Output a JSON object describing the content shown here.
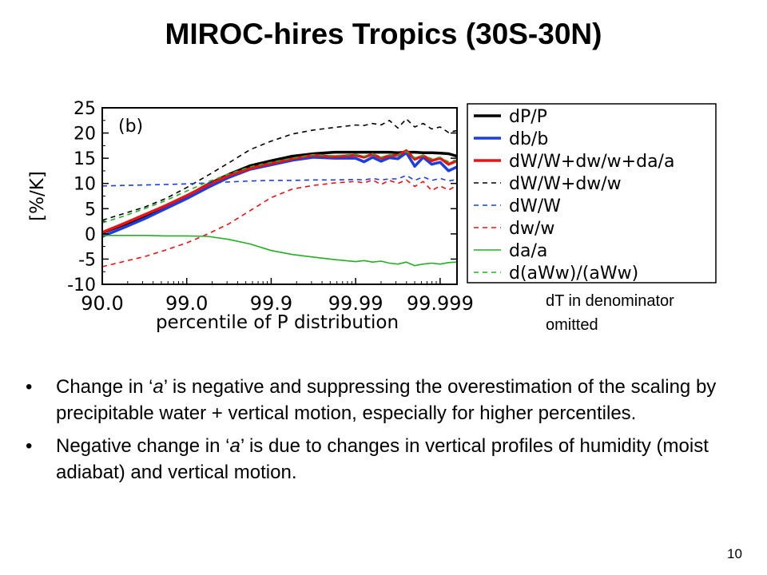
{
  "slide": {
    "title": "MIROC-hires Tropics (30S-30N)",
    "note_line1": "dT in denominator",
    "note_line2": "omitted",
    "page_number": "10",
    "bullets": [
      {
        "pre": "Change in ‘",
        "em": "a",
        "post": "’ is negative and suppressing the overestimation of the scaling by precipitable water + vertical motion, especially for higher percentiles."
      },
      {
        "pre": "Negative change in ‘",
        "em": "a",
        "post": "’ is due to changes in vertical profiles of humidity (moist adiabat) and vertical motion."
      }
    ]
  },
  "chart_data": {
    "type": "line",
    "panel_label": "(b)",
    "xlabel": "percentile of P distribution",
    "ylabel": "[%/K]",
    "x_tick_labels": [
      "90.0",
      "99.0",
      "99.9",
      "99.99",
      "99.999"
    ],
    "x_tick_positions": [
      0,
      1,
      2,
      3,
      4
    ],
    "xlim": [
      0,
      4.2
    ],
    "ylim": [
      -10,
      25
    ],
    "y_ticks": [
      -10,
      -5,
      0,
      5,
      10,
      15,
      20,
      25
    ],
    "legend_position": "right, outside plot",
    "x": [
      0,
      0.25,
      0.5,
      0.75,
      1,
      1.25,
      1.5,
      1.75,
      2,
      2.25,
      2.5,
      2.75,
      3,
      3.1,
      3.2,
      3.3,
      3.4,
      3.5,
      3.6,
      3.7,
      3.8,
      3.9,
      4,
      4.1,
      4.2
    ],
    "series": [
      {
        "name": "dP/P",
        "color": "#000000",
        "dash": "solid",
        "width": 3.5,
        "values": [
          0.2,
          1.8,
          3.5,
          5.4,
          7.5,
          9.8,
          11.8,
          13.5,
          14.5,
          15.4,
          15.9,
          16.2,
          16.2,
          16.2,
          16.2,
          16.2,
          16.2,
          16.1,
          16.2,
          16.2,
          16.1,
          16.1,
          16,
          15.9,
          15.4
        ]
      },
      {
        "name": "db/b",
        "color": "#1a3fe0",
        "dash": "solid",
        "width": 3.5,
        "values": [
          -0.5,
          1.2,
          3.0,
          5.0,
          7.0,
          9.2,
          11.2,
          12.8,
          13.7,
          14.6,
          15.2,
          15.0,
          15.0,
          14.3,
          15.2,
          14.4,
          15.1,
          14.9,
          16.1,
          13.4,
          15.2,
          13.8,
          14.2,
          12.5,
          13.3
        ]
      },
      {
        "name": "dW/W+dw/w+da/a",
        "color": "#ee1111",
        "dash": "solid",
        "width": 3.5,
        "values": [
          0.3,
          2.0,
          3.8,
          5.6,
          7.6,
          9.7,
          11.6,
          13.0,
          14.0,
          14.9,
          15.6,
          15.3,
          15.6,
          15.2,
          15.8,
          15.0,
          15.5,
          15.6,
          16.5,
          14.8,
          15.5,
          14.5,
          15.0,
          13.8,
          14.5
        ]
      },
      {
        "name": "dW/W+dw/w",
        "color": "#000000",
        "dash": "6,5",
        "width": 1.6,
        "values": [
          2.7,
          4.0,
          5.3,
          7.0,
          9.2,
          11.6,
          14.1,
          16.7,
          18.4,
          19.8,
          20.6,
          21.1,
          21.6,
          21.5,
          21.9,
          21.6,
          22.5,
          21.0,
          22.8,
          21.2,
          21.9,
          20.8,
          21.2,
          20.1,
          20.5
        ]
      },
      {
        "name": "dW/W",
        "color": "#1a3fe0",
        "dash": "6,5",
        "width": 1.6,
        "values": [
          9.5,
          9.6,
          9.7,
          9.8,
          9.9,
          10.1,
          10.3,
          10.5,
          10.6,
          10.6,
          10.7,
          10.7,
          10.8,
          10.7,
          11.0,
          10.7,
          10.9,
          10.9,
          11.6,
          10.6,
          11.3,
          10.6,
          11.0,
          10.5,
          10.8
        ]
      },
      {
        "name": "dw/w",
        "color": "#ee1111",
        "dash": "6,5",
        "width": 1.6,
        "values": [
          -6.5,
          -5.5,
          -4.5,
          -3.2,
          -1.8,
          0.0,
          2.0,
          4.6,
          7.2,
          8.9,
          9.6,
          10.1,
          10.4,
          10.1,
          10.7,
          9.8,
          10.6,
          10.0,
          10.7,
          9.4,
          10.4,
          8.6,
          9.5,
          8.7,
          9.6
        ]
      },
      {
        "name": "da/a",
        "color": "#22b022",
        "dash": "solid",
        "width": 1.6,
        "values": [
          -0.3,
          -0.3,
          -0.3,
          -0.4,
          -0.4,
          -0.5,
          -1.1,
          -2.0,
          -3.3,
          -4.1,
          -4.6,
          -5.1,
          -5.5,
          -5.3,
          -5.6,
          -5.4,
          -5.8,
          -6.0,
          -5.6,
          -6.3,
          -6.0,
          -5.8,
          -6.0,
          -5.7,
          -5.6
        ]
      },
      {
        "name": "d(aWw)/(aWw)",
        "color": "#22b022",
        "dash": "6,5",
        "width": 1.6,
        "values": [
          2.2,
          3.5,
          5.0,
          6.6,
          8.5,
          10.3,
          11.9,
          13.3,
          14.2,
          15.0,
          15.7,
          15.5,
          15.8,
          15.4,
          15.9,
          15.2,
          15.7,
          15.6,
          16.3,
          15.1,
          15.6,
          14.9,
          15.2,
          14.3,
          14.7
        ]
      }
    ]
  }
}
